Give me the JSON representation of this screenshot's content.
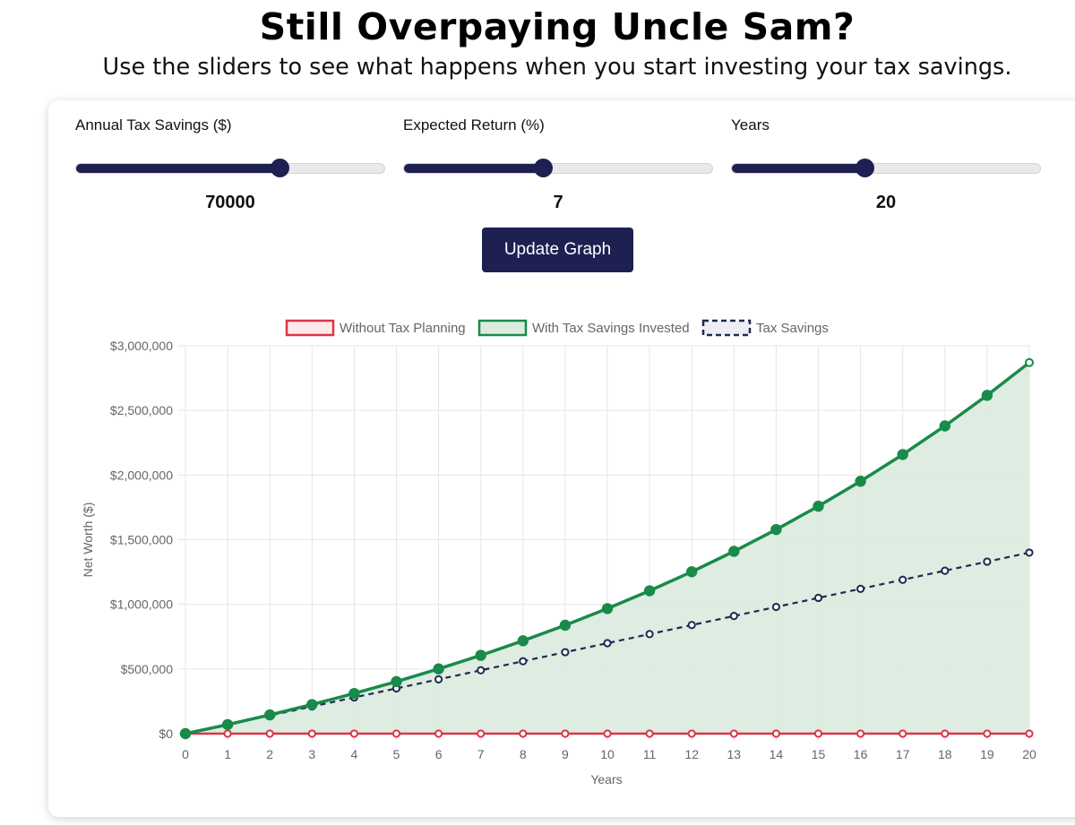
{
  "header": {
    "title": "Still Overpaying Uncle Sam?",
    "subtitle": "Use the sliders to see what happens when you start investing your tax savings."
  },
  "controls": {
    "sliders": [
      {
        "label": "Annual Tax Savings ($)",
        "value": "70000",
        "fraction": 0.66
      },
      {
        "label": "Expected Return (%)",
        "value": "7",
        "fraction": 0.45
      },
      {
        "label": "Years",
        "value": "20",
        "fraction": 0.43
      }
    ],
    "update_label": "Update Graph"
  },
  "colors": {
    "accent": "#1d2051",
    "without": "#dc3545",
    "with": "#198a4a",
    "with_fill": "#dcebe0",
    "savings": "#1d2b4f"
  },
  "chart_data": {
    "type": "line",
    "xlabel": "Years",
    "ylabel": "Net Worth ($)",
    "ylim": [
      0,
      3000000
    ],
    "yticks": [
      "$0",
      "$500,000",
      "$1,000,000",
      "$1,500,000",
      "$2,000,000",
      "$2,500,000",
      "$3,000,000"
    ],
    "x": [
      0,
      1,
      2,
      3,
      4,
      5,
      6,
      7,
      8,
      9,
      10,
      11,
      12,
      13,
      14,
      15,
      16,
      17,
      18,
      19,
      20
    ],
    "legend_position": "top",
    "grid": true,
    "series": [
      {
        "name": "Without Tax Planning",
        "values": [
          0,
          0,
          0,
          0,
          0,
          0,
          0,
          0,
          0,
          0,
          0,
          0,
          0,
          0,
          0,
          0,
          0,
          0,
          0,
          0,
          0
        ]
      },
      {
        "name": "With Tax Savings Invested",
        "values": [
          0,
          70000,
          144900,
          225043,
          310796,
          402552,
          500731,
          605782,
          718187,
          838460,
          967152,
          1104853,
          1252193,
          1409847,
          1578536,
          1759033,
          1952165,
          2158817,
          2379934,
          2616530,
          2869687
        ]
      },
      {
        "name": "Tax Savings",
        "values": [
          0,
          70000,
          140000,
          210000,
          280000,
          350000,
          420000,
          490000,
          560000,
          630000,
          700000,
          770000,
          840000,
          910000,
          980000,
          1050000,
          1120000,
          1190000,
          1260000,
          1330000,
          1400000
        ]
      }
    ]
  }
}
